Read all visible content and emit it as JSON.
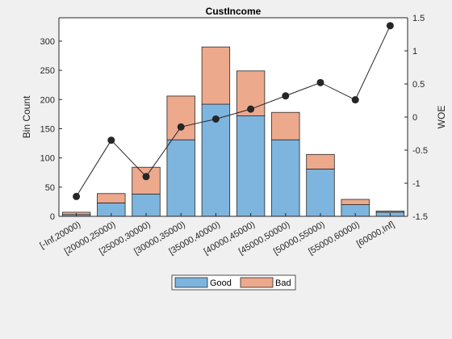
{
  "chart_data": {
    "type": "bar",
    "title": "CustIncome",
    "ylabel_left": "Bin Count",
    "ylabel_right": "WOE",
    "categories": [
      "[-Inf,20000)",
      "[20000,25000)",
      "[25000,30000)",
      "[30000,35000)",
      "[35000,40000)",
      "[40000,45000)",
      "[45000,50000)",
      "[50000,55000)",
      "[55000,60000)",
      "[60000,Inf]"
    ],
    "stacked": true,
    "series": [
      {
        "name": "Good",
        "color": "#7eb5de",
        "values": [
          3,
          23,
          38,
          131,
          192,
          172,
          131,
          81,
          20,
          7
        ]
      },
      {
        "name": "Bad",
        "color": "#eda98c",
        "values": [
          4,
          16,
          46,
          75,
          98,
          77,
          47,
          25,
          9,
          2
        ]
      }
    ],
    "line": {
      "axis": "right",
      "color": "#262626",
      "values": [
        -1.2,
        -0.35,
        -0.9,
        -0.15,
        -0.03,
        0.12,
        0.32,
        0.52,
        0.26,
        1.38
      ]
    },
    "ylim_left": [
      0,
      340
    ],
    "yticks_left": [
      0,
      50,
      100,
      150,
      200,
      250,
      300
    ],
    "ylim_right": [
      -1.5,
      1.5
    ],
    "yticks_right": [
      -1.5,
      -1,
      -0.5,
      0,
      0.5,
      1,
      1.5
    ],
    "yticklabels_right": [
      "-1.5",
      "-1",
      "-0.5",
      "0",
      "0.5",
      "1",
      "1.5"
    ],
    "legend_position": "bottom-center"
  }
}
